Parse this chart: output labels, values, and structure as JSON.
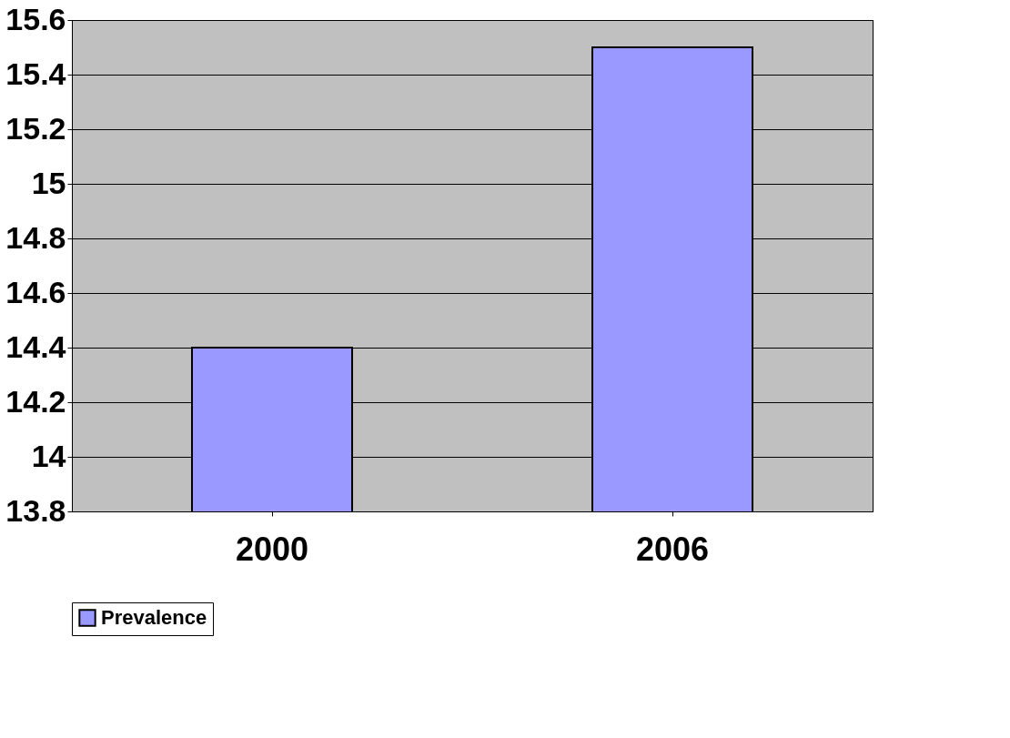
{
  "chart_data": {
    "type": "bar",
    "categories": [
      "2000",
      "2006"
    ],
    "series": [
      {
        "name": "Prevalence",
        "color": "#9999ff",
        "values": [
          14.4,
          15.5
        ]
      }
    ],
    "ylim": [
      13.8,
      15.6
    ],
    "yticks": [
      13.8,
      14,
      14.2,
      14.4,
      14.6,
      14.8,
      15,
      15.2,
      15.4,
      15.6
    ],
    "grid": "y",
    "legend": "bottom"
  }
}
